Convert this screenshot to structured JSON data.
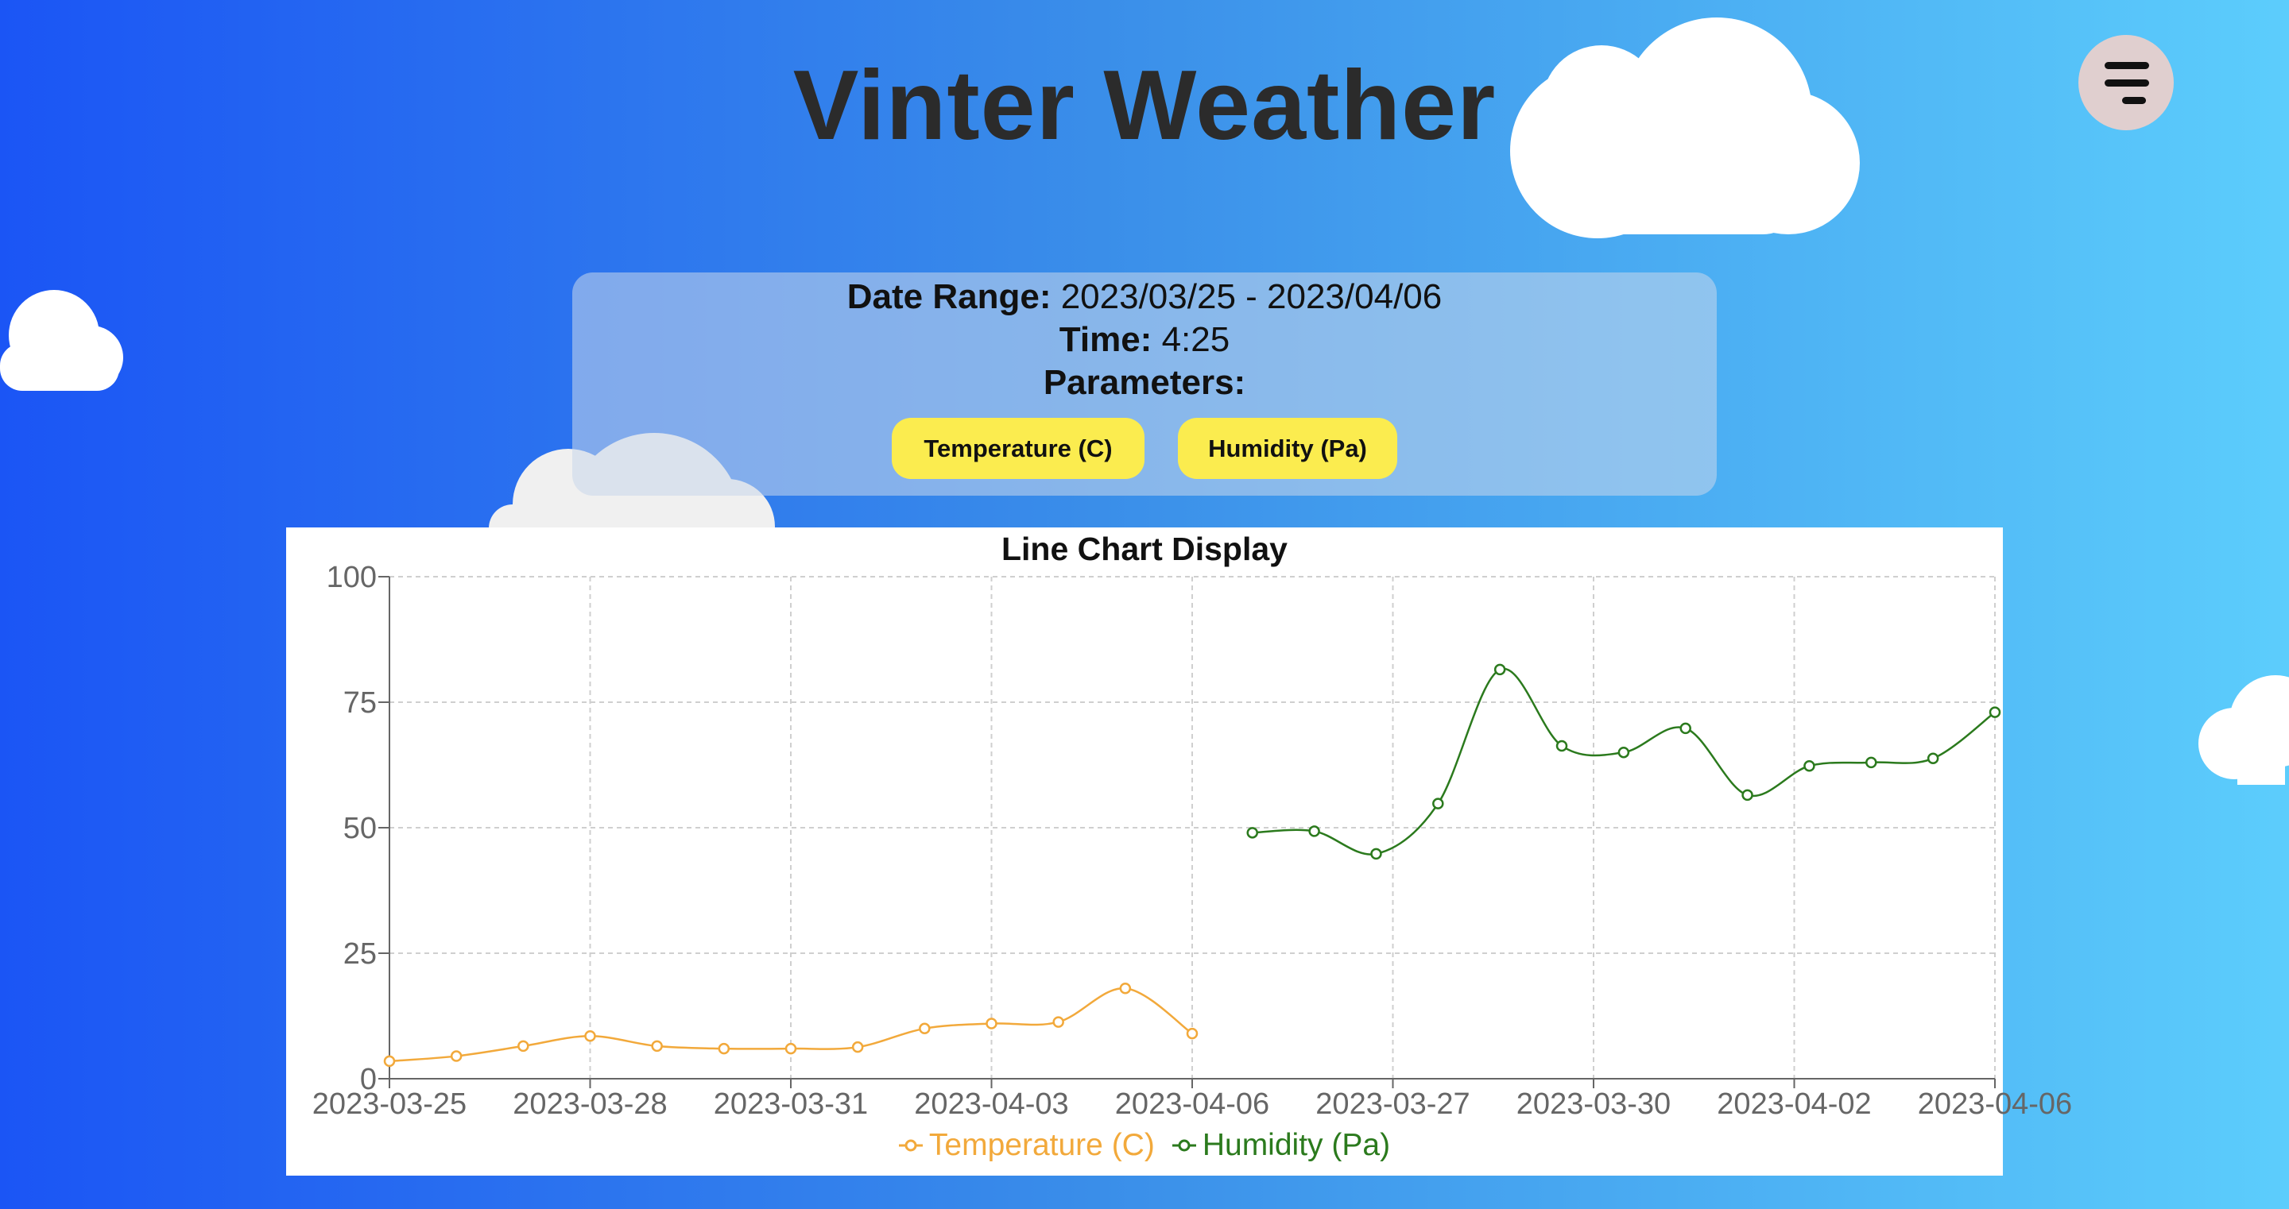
{
  "header": {
    "title": "Vinter Weather"
  },
  "menu": {
    "icon": "menu-icon"
  },
  "info": {
    "date_range_label": "Date Range:",
    "date_range_value": "2023/03/25 - 2023/04/06",
    "time_label": "Time:",
    "time_value": "4:25",
    "parameters_label": "Parameters:",
    "parameters": [
      "Temperature (C)",
      "Humidity (Pa)"
    ]
  },
  "colors": {
    "background_start": "#1b55f5",
    "background_end": "#5ccdfc",
    "chip": "#fbec4f",
    "temperature": "#f2a93b",
    "humidity": "#2b7a1d"
  },
  "chart_data": {
    "type": "line",
    "title": "Line Chart Display",
    "x_ticks": [
      "2023-03-25",
      "2023-03-28",
      "2023-03-31",
      "2023-04-03",
      "2023-04-06",
      "2023-03-27",
      "2023-03-30",
      "2023-04-02",
      "2023-04-06"
    ],
    "ylim": [
      0,
      100
    ],
    "y_ticks": [
      0,
      25,
      50,
      75,
      100
    ],
    "grid": true,
    "legend_position": "bottom",
    "series": [
      {
        "name": "Temperature (C)",
        "color": "#f2a93b",
        "x": [
          "2023-03-25",
          "2023-03-26",
          "2023-03-27",
          "2023-03-28",
          "2023-03-29",
          "2023-03-30",
          "2023-03-31",
          "2023-04-01",
          "2023-04-02",
          "2023-04-03",
          "2023-04-04",
          "2023-04-05",
          "2023-04-06"
        ],
        "values": [
          3.5,
          4.5,
          6.5,
          8.5,
          6.5,
          6,
          6,
          6.3,
          10,
          11,
          11.3,
          18,
          9
        ]
      },
      {
        "name": "Humidity (Pa)",
        "color": "#2b7a1d",
        "x": [
          "2023-03-25",
          "2023-03-26",
          "2023-03-27",
          "2023-03-28",
          "2023-03-29",
          "2023-03-30",
          "2023-03-31",
          "2023-04-01",
          "2023-04-02",
          "2023-04-03",
          "2023-04-04",
          "2023-04-05",
          "2023-04-06"
        ],
        "values": [
          49,
          49.3,
          44.8,
          54.8,
          81.5,
          66.3,
          65,
          69.8,
          56.5,
          62.3,
          63,
          63.8,
          73
        ]
      }
    ]
  }
}
